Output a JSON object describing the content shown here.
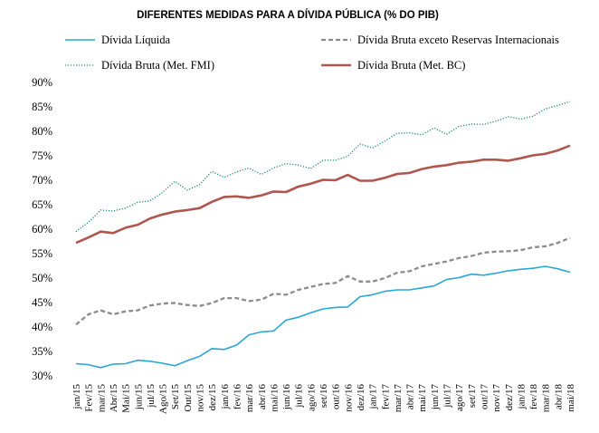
{
  "chart_data": {
    "type": "line",
    "title": "DIFERENTES MEDIDAS PARA A DÍVIDA PÚBLICA (% DO PIB)",
    "xlabel": "",
    "ylabel": "",
    "ylim": [
      30,
      90
    ],
    "y_ticks": [
      "30%",
      "35%",
      "40%",
      "45%",
      "50%",
      "55%",
      "60%",
      "65%",
      "70%",
      "75%",
      "80%",
      "85%",
      "90%"
    ],
    "grid": false,
    "legend": "top",
    "x_labels": [
      "jan/15",
      "Fev/15",
      "mar/15",
      "Abr/15",
      "Mai/15",
      "jun/15",
      "jul/15",
      "Ago/15",
      "Set/15",
      "Out/15",
      "nov/15",
      "dez/15",
      "jan/16",
      "fev/16",
      "mar/16",
      "abr/16",
      "mai/16",
      "jun/16",
      "jul/16",
      "ago/16",
      "set/16",
      "out/16",
      "nov/16",
      "dez/16",
      "jan/17",
      "fev/17",
      "mar/17",
      "abr/17",
      "mai/17",
      "jun/17",
      "jul/17",
      "ago/17",
      "set/17",
      "out/17",
      "nov/17",
      "dez/17",
      "jan/18",
      "fev/18",
      "mar/18",
      "abr/18",
      "mai/18"
    ],
    "series": [
      {
        "name": "Dívida Líquida",
        "color": "#2AA7D6",
        "style": "solid",
        "values": [
          32.5,
          32.3,
          31.7,
          32.4,
          32.5,
          33.2,
          33.0,
          32.6,
          32.1,
          33.1,
          34.0,
          35.6,
          35.4,
          36.3,
          38.4,
          39.0,
          39.2,
          41.4,
          42.0,
          42.9,
          43.7,
          44.0,
          44.1,
          46.2,
          46.6,
          47.3,
          47.6,
          47.6,
          48.0,
          48.4,
          49.7,
          50.1,
          50.8,
          50.6,
          51.0,
          51.5,
          51.8,
          52.0,
          52.4,
          51.9,
          51.2
        ]
      },
      {
        "name": "Dívida Bruta exceto Reservas Internacionais",
        "color": "#8C8C8C",
        "style": "dashed",
        "values": [
          40.5,
          42.6,
          43.4,
          42.6,
          43.2,
          43.4,
          44.4,
          44.8,
          44.9,
          44.5,
          44.3,
          44.9,
          45.9,
          45.9,
          45.3,
          45.6,
          46.8,
          46.6,
          47.6,
          48.2,
          48.8,
          49.0,
          50.4,
          49.3,
          49.3,
          50.0,
          51.1,
          51.4,
          52.4,
          52.9,
          53.4,
          54.1,
          54.5,
          55.2,
          55.4,
          55.5,
          55.7,
          56.3,
          56.5,
          57.2,
          58.2
        ]
      },
      {
        "name": "Dívida Bruta (Met. FMI)",
        "color": "#1F8A6A",
        "style": "dotted",
        "values": [
          59.5,
          61.4,
          63.9,
          63.7,
          64.3,
          65.5,
          65.8,
          67.5,
          69.8,
          68.0,
          69.1,
          71.8,
          70.6,
          71.7,
          72.5,
          71.2,
          72.5,
          73.4,
          73.1,
          72.4,
          74.1,
          74.1,
          74.9,
          77.4,
          76.6,
          78.0,
          79.6,
          79.7,
          79.3,
          80.7,
          79.4,
          81.0,
          81.5,
          81.4,
          82.1,
          83.0,
          82.5,
          83.1,
          84.6,
          85.3,
          86.1
        ]
      },
      {
        "name": "Dívida Bruta (Met. BC)",
        "color": "#B0564F",
        "style": "solid",
        "values": [
          57.2,
          58.3,
          59.5,
          59.2,
          60.3,
          60.9,
          62.2,
          63.0,
          63.6,
          63.9,
          64.3,
          65.6,
          66.6,
          66.7,
          66.4,
          66.9,
          67.7,
          67.6,
          68.7,
          69.3,
          70.1,
          70.0,
          71.1,
          69.9,
          69.9,
          70.5,
          71.3,
          71.5,
          72.3,
          72.8,
          73.1,
          73.6,
          73.8,
          74.2,
          74.2,
          74.0,
          74.5,
          75.1,
          75.4,
          76.1,
          77.1
        ]
      }
    ]
  }
}
